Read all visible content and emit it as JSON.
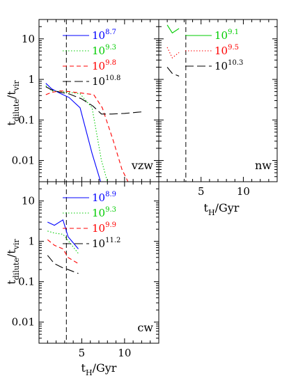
{
  "chart_data": [
    {
      "type": "line",
      "panel": "vzw",
      "tag": "vzw",
      "xlim": [
        0,
        14
      ],
      "ylim": [
        0.003,
        30
      ],
      "yscale": "log",
      "y_tick_labels": [
        "10",
        "1",
        "0.1",
        "0.01"
      ],
      "y_tick_values": [
        10,
        1,
        0.1,
        0.01
      ],
      "vline_x": 3.2,
      "series": [
        {
          "name": "10^8.7",
          "base": "10",
          "exp": "8.7",
          "color": "#0000ff",
          "dash": "solid",
          "x": [
            0.8,
            1.5,
            2.5,
            3.5,
            4.8,
            6.2,
            7.2
          ],
          "y": [
            0.8,
            0.58,
            0.45,
            0.36,
            0.2,
            0.015,
            0.003
          ]
        },
        {
          "name": "10^9.3",
          "base": "10",
          "exp": "9.3",
          "color": "#00cc00",
          "dash": "dotted",
          "x": [
            0.8,
            1.5,
            2.5,
            3.5,
            4.8,
            6.2,
            7.3,
            8.0
          ],
          "y": [
            0.7,
            0.52,
            0.5,
            0.48,
            0.44,
            0.2,
            0.01,
            0.003
          ]
        },
        {
          "name": "10^9.8",
          "base": "10",
          "exp": "9.8",
          "color": "#ff0000",
          "dash": "dashed",
          "x": [
            0.8,
            1.5,
            2.5,
            3.5,
            5.0,
            6.4,
            7.4,
            8.7,
            9.7,
            10.4
          ],
          "y": [
            0.42,
            0.48,
            0.52,
            0.5,
            0.46,
            0.42,
            0.2,
            0.03,
            0.006,
            0.003
          ]
        },
        {
          "name": "10^10.8",
          "base": "10",
          "exp": "10.8",
          "color": "#000000",
          "dash": "longdash",
          "x": [
            0.8,
            1.5,
            2.5,
            3.5,
            5.0,
            6.3,
            7.3,
            8.5,
            10.0,
            11.5,
            12.3
          ],
          "y": [
            0.66,
            0.55,
            0.48,
            0.44,
            0.33,
            0.22,
            0.14,
            0.14,
            0.145,
            0.155,
            0.16
          ]
        }
      ]
    },
    {
      "type": "line",
      "panel": "nw",
      "tag": "nw",
      "xlim": [
        0,
        14
      ],
      "ylim": [
        0.003,
        30
      ],
      "yscale": "log",
      "x_tick_labels": [
        "5",
        "10"
      ],
      "x_tick_values": [
        5,
        10
      ],
      "vline_x": 3.2,
      "series": [
        {
          "name": "10^9.1",
          "base": "10",
          "exp": "9.1",
          "color": "#00cc00",
          "dash": "solid",
          "x": [
            1.0,
            1.6,
            2.4
          ],
          "y": [
            22,
            14,
            18
          ]
        },
        {
          "name": "10^9.5",
          "base": "10",
          "exp": "9.5",
          "color": "#ff0000",
          "dash": "dotted",
          "x": [
            1.0,
            1.6,
            2.4
          ],
          "y": [
            6.2,
            3.4,
            4.6
          ]
        },
        {
          "name": "10^10.3",
          "base": "10",
          "exp": "10.3",
          "color": "#000000",
          "dash": "longdash",
          "x": [
            1.0,
            1.6,
            2.4
          ],
          "y": [
            2.0,
            1.4,
            1.2
          ]
        }
      ]
    },
    {
      "type": "line",
      "panel": "cw",
      "tag": "cw",
      "xlim": [
        0,
        14
      ],
      "ylim": [
        0.003,
        30
      ],
      "yscale": "log",
      "x_tick_labels": [
        "5",
        "10"
      ],
      "x_tick_values": [
        5,
        10
      ],
      "y_tick_labels": [
        "10",
        "1",
        "0.1",
        "0.01"
      ],
      "y_tick_values": [
        10,
        1,
        0.1,
        0.01
      ],
      "vline_x": 3.2,
      "series": [
        {
          "name": "10^8.9",
          "base": "10",
          "exp": "8.9",
          "color": "#0000ff",
          "dash": "solid",
          "x": [
            1.0,
            1.8,
            2.8,
            3.4,
            4.6
          ],
          "y": [
            3.0,
            2.5,
            3.4,
            1.3,
            0.65
          ]
        },
        {
          "name": "10^9.3",
          "base": "10",
          "exp": "9.3",
          "color": "#00cc00",
          "dash": "dotted",
          "x": [
            1.0,
            1.8,
            2.8,
            3.4,
            4.6
          ],
          "y": [
            1.8,
            1.6,
            1.5,
            1.05,
            0.5
          ]
        },
        {
          "name": "10^9.9",
          "base": "10",
          "exp": "9.9",
          "color": "#ff0000",
          "dash": "dashed",
          "x": [
            1.0,
            1.8,
            2.8,
            3.4,
            4.6
          ],
          "y": [
            1.1,
            0.8,
            0.65,
            0.4,
            0.28
          ]
        },
        {
          "name": "10^11.2",
          "base": "10",
          "exp": "11.2",
          "color": "#000000",
          "dash": "longdash",
          "x": [
            1.0,
            1.8,
            2.8,
            3.4,
            4.6
          ],
          "y": [
            0.45,
            0.28,
            0.22,
            0.2,
            0.16
          ]
        }
      ]
    }
  ],
  "labels": {
    "ylabel_main": "t",
    "ylabel_sub1": "dilute",
    "ylabel_slash": "/t",
    "ylabel_sub2": "vir",
    "xlabel_main": "t",
    "xlabel_sub": "H",
    "xlabel_rest": "/Gyr"
  }
}
